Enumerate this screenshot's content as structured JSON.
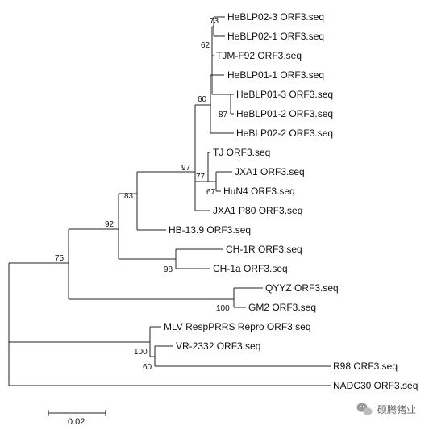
{
  "tree": {
    "leaves": [
      "HeBLP02-3 ORF3.seq",
      "HeBLP02-1 ORF3.seq",
      "TJM-F92 ORF3.seq",
      "HeBLP01-1 ORF3.seq",
      "HeBLP01-3 ORF3.seq",
      "HeBLP01-2 ORF3.seq",
      "HeBLP02-2 ORF3.seq",
      "TJ ORF3.seq",
      "JXA1 ORF3.seq",
      "HuN4 ORF3.seq",
      "JXA1 P80 ORF3.seq",
      "HB-13.9 ORF3.seq",
      "CH-1R ORF3.seq",
      "CH-1a ORF3.seq",
      "QYYZ ORF3.seq",
      "GM2 ORF3.seq",
      "MLV RespPRRS Repro ORF3.seq",
      "VR-2332 ORF3.seq",
      "R98 ORF3.seq",
      "NADC30 ORF3.seq"
    ],
    "bootstrap": [
      "73",
      "62",
      "60",
      "87",
      "97",
      "77",
      "67",
      "83",
      "92",
      "98",
      "75",
      "100",
      "100",
      "60"
    ],
    "scale_bar_label": "0.02"
  },
  "watermark": {
    "text": "硕腾猪业",
    "icon": "wechat-icon"
  }
}
